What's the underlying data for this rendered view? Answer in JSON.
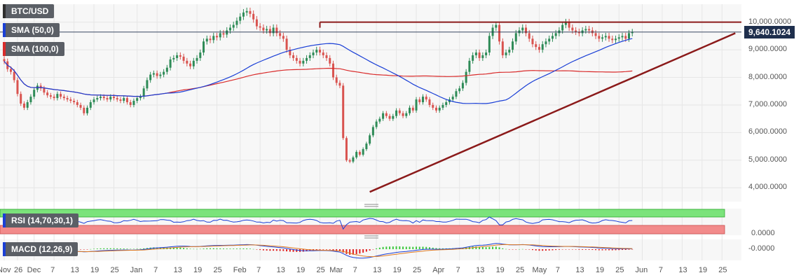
{
  "chart_data": {
    "type": "candlestick",
    "symbol": "BTC/USD",
    "last_price_label": "9,640.1024",
    "price_axis": {
      "ylim": [
        3500,
        10650
      ],
      "ticks": [
        10000,
        9000,
        8000,
        7000,
        6000,
        5000,
        4000
      ],
      "tick_labels": [
        "10,000.0000",
        "9,000.0000",
        "8,000.0000",
        "7,000.0000",
        "6,000.0000",
        "5,000.0000",
        "4,000.0000"
      ]
    },
    "time_axis": {
      "ticks": [
        {
          "label": "Nov",
          "day": 0
        },
        {
          "label": "26",
          "day": 4
        },
        {
          "label": "Dec",
          "day": 9
        },
        {
          "label": "7",
          "day": 15
        },
        {
          "label": "13",
          "day": 21
        },
        {
          "label": "19",
          "day": 27
        },
        {
          "label": "25",
          "day": 33
        },
        {
          "label": "Jan",
          "day": 40
        },
        {
          "label": "7",
          "day": 46
        },
        {
          "label": "13",
          "day": 52
        },
        {
          "label": "19",
          "day": 58
        },
        {
          "label": "25",
          "day": 64
        },
        {
          "label": "Feb",
          "day": 71
        },
        {
          "label": "7",
          "day": 77
        },
        {
          "label": "13",
          "day": 83
        },
        {
          "label": "19",
          "day": 89
        },
        {
          "label": "25",
          "day": 95
        },
        {
          "label": "Mar",
          "day": 100
        },
        {
          "label": "7",
          "day": 106
        },
        {
          "label": "13",
          "day": 112
        },
        {
          "label": "19",
          "day": 118
        },
        {
          "label": "25",
          "day": 124
        },
        {
          "label": "Apr",
          "day": 131
        },
        {
          "label": "7",
          "day": 137
        },
        {
          "label": "13",
          "day": 143
        },
        {
          "label": "19",
          "day": 149
        },
        {
          "label": "25",
          "day": 155
        },
        {
          "label": "May",
          "day": 161
        },
        {
          "label": "7",
          "day": 167
        },
        {
          "label": "13",
          "day": 173
        },
        {
          "label": "19",
          "day": 179
        },
        {
          "label": "25",
          "day": 185
        },
        {
          "label": "Jun",
          "day": 192
        },
        {
          "label": "7",
          "day": 198
        },
        {
          "label": "13",
          "day": 204
        },
        {
          "label": "19",
          "day": 210
        },
        {
          "label": "25",
          "day": 216
        }
      ]
    },
    "closes": [
      8580,
      8300,
      8200,
      7900,
      7400,
      7050,
      6900,
      7100,
      7300,
      7550,
      7700,
      7600,
      7450,
      7350,
      7300,
      7250,
      7400,
      7300,
      7250,
      7200,
      7150,
      7100,
      7000,
      6900,
      6700,
      6900,
      7100,
      7200,
      7250,
      7300,
      7250,
      7200,
      7300,
      7250,
      7200,
      7150,
      7250,
      7100,
      7000,
      7150,
      7250,
      7300,
      7600,
      7900,
      8100,
      8150,
      8050,
      8100,
      8200,
      8350,
      8650,
      8700,
      8800,
      8750,
      8600,
      8500,
      8400,
      8600,
      8700,
      8900,
      9300,
      9400,
      9350,
      9500,
      9450,
      9600,
      9550,
      9700,
      9800,
      9900,
      10050,
      10200,
      10350,
      10400,
      10300,
      10100,
      9850,
      9800,
      9700,
      9750,
      9600,
      9800,
      9600,
      9500,
      9400,
      9000,
      8800,
      8700,
      8600,
      8500,
      8600,
      8700,
      8800,
      8900,
      9000,
      8900,
      8800,
      8700,
      8500,
      8000,
      7800,
      7700,
      5800,
      5000,
      4950,
      5100,
      5300,
      5200,
      5400,
      5600,
      5900,
      6200,
      6400,
      6500,
      6700,
      6600,
      6500,
      6600,
      6800,
      6700,
      6600,
      6700,
      6900,
      6800,
      7200,
      7100,
      7300,
      7200,
      7000,
      6900,
      6800,
      6900,
      7000,
      7100,
      7200,
      7300,
      7500,
      7600,
      7800,
      8200,
      8600,
      8800,
      8900,
      8700,
      8800,
      8900,
      9500,
      9800,
      9900,
      9300,
      8800,
      8900,
      9000,
      9300,
      9600,
      9700,
      9800,
      9600,
      9400,
      9200,
      9100,
      9000,
      9200,
      9300,
      9400,
      9500,
      9600,
      9700,
      9900,
      10000,
      9800,
      9700,
      9650,
      9600,
      9700,
      9750,
      9700,
      9600,
      9500,
      9400,
      9450,
      9500,
      9400,
      9350,
      9400,
      9450,
      9500,
      9400,
      9600,
      9640
    ],
    "day_start_index": 0,
    "series": [
      {
        "name": "SMA (50,0)",
        "color": "#1a3fd6"
      },
      {
        "name": "SMA (100,0)",
        "color": "#d92b2b"
      }
    ],
    "horizontal_line": {
      "value": 10000,
      "from_day": 95,
      "color": "#8b1a1a"
    },
    "trendline": {
      "from": {
        "day": 110,
        "price": 3850
      },
      "to": {
        "day": 220,
        "price": 9600
      },
      "color": "#8b1a1a"
    },
    "rsi": {
      "label": "RSI (14,70,30,1)",
      "axis_label": "0.0000"
    },
    "macd": {
      "label": "MACD (12,26,9)",
      "axis_label": "-0.0000"
    },
    "colors": {
      "up": "#2e8b57",
      "down": "#d9534f",
      "grid": "#e6e6e6",
      "bg": "#f7f7f7"
    }
  }
}
